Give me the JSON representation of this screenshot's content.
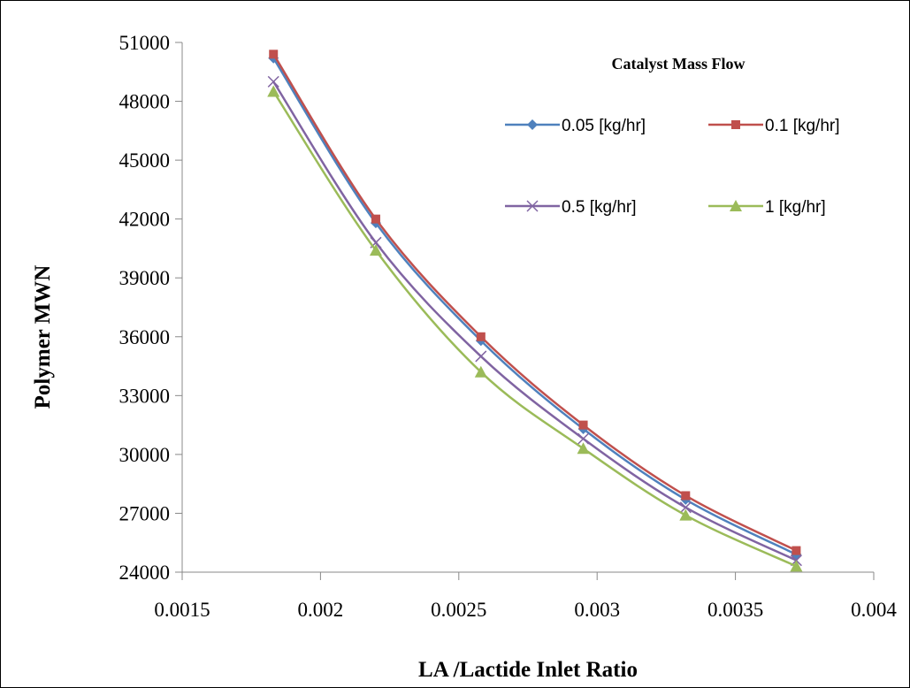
{
  "chart_data": {
    "type": "line",
    "xlabel": "LA /Lactide Inlet Ratio",
    "ylabel": "Polymer MWN",
    "xlim": [
      0.0015,
      0.004
    ],
    "ylim": [
      24000,
      51000
    ],
    "x_ticks": [
      "0.0015",
      "0.002",
      "0.0025",
      "0.003",
      "0.0035",
      "0.004"
    ],
    "y_ticks": [
      "24000",
      "27000",
      "30000",
      "33000",
      "36000",
      "39000",
      "42000",
      "45000",
      "48000",
      "51000"
    ],
    "grid": false,
    "legend": {
      "title": "Catalyst Mass Flow",
      "position": "top-right"
    },
    "x": [
      0.00183,
      0.0022,
      0.00258,
      0.00295,
      0.00332,
      0.00372
    ],
    "series": [
      {
        "name": "0.05 [kg/hr]",
        "color": "#4F81BD",
        "marker": "diamond",
        "values": [
          50200,
          41800,
          35800,
          31300,
          27700,
          24900
        ]
      },
      {
        "name": "0.1 [kg/hr]",
        "color": "#C0504D",
        "marker": "square",
        "values": [
          50400,
          42000,
          36000,
          31500,
          27900,
          25100
        ]
      },
      {
        "name": "0.5 [kg/hr]",
        "color": "#8064A2",
        "marker": "x",
        "values": [
          49000,
          40800,
          35000,
          30800,
          27300,
          24600
        ]
      },
      {
        "name": "1 [kg/hr]",
        "color": "#9BBB59",
        "marker": "triangle",
        "values": [
          48500,
          40400,
          34200,
          30300,
          26900,
          24300
        ]
      }
    ]
  }
}
